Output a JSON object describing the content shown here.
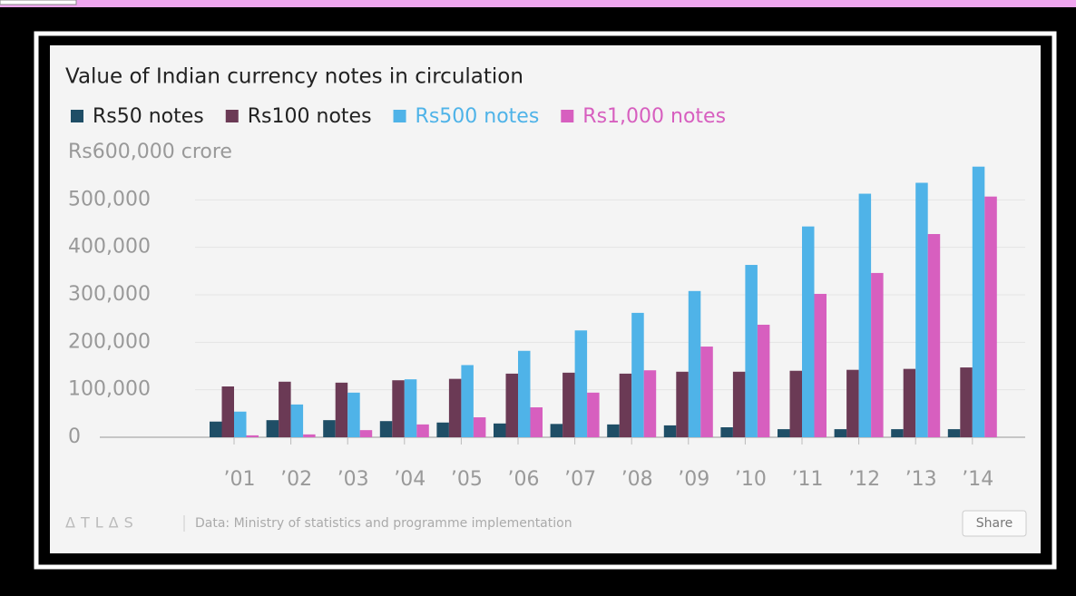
{
  "chart_data": {
    "type": "bar",
    "title": "Value of Indian currency notes in circulation",
    "categories": [
      "’01",
      "’02",
      "’03",
      "’04",
      "’05",
      "’06",
      "’07",
      "’08",
      "’09",
      "’10",
      "’11",
      "’12",
      "’13",
      "’14"
    ],
    "series": [
      {
        "name": "Rs50 notes",
        "color": "#1f4e66",
        "values": [
          33000,
          36000,
          36000,
          34000,
          31000,
          29000,
          28000,
          27000,
          25000,
          21000,
          17000,
          17000,
          17000,
          17000
        ]
      },
      {
        "name": "Rs100 notes",
        "color": "#6b3a55",
        "values": [
          107000,
          117000,
          115000,
          120000,
          123000,
          134000,
          136000,
          134000,
          138000,
          138000,
          140000,
          142000,
          144000,
          147000
        ]
      },
      {
        "name": "Rs500 notes",
        "color": "#4fb3e8",
        "values": [
          54000,
          69000,
          94000,
          122000,
          152000,
          182000,
          225000,
          262000,
          308000,
          363000,
          444000,
          513000,
          536000,
          570000
        ]
      },
      {
        "name": "Rs1,000 notes",
        "color": "#d75fbf",
        "values": [
          4000,
          6000,
          15000,
          27000,
          42000,
          63000,
          94000,
          141000,
          191000,
          237000,
          302000,
          346000,
          428000,
          507000
        ]
      }
    ],
    "ylim": [
      0,
      600000
    ],
    "yticks": [
      0,
      {
        "value": 100000,
        "label": "100,000"
      },
      {
        "value": 200000,
        "label": "200,000"
      },
      {
        "value": 300000,
        "label": "300,000"
      },
      {
        "value": 400000,
        "label": "400,000"
      },
      {
        "value": 500000,
        "label": "500,000"
      },
      {
        "value": 600000,
        "label": "Rs600,000 crore"
      }
    ],
    "grid": true,
    "logo": "ΔTLΔS",
    "source": "Data: Ministry of statistics and programme implementation",
    "share": "Share"
  }
}
